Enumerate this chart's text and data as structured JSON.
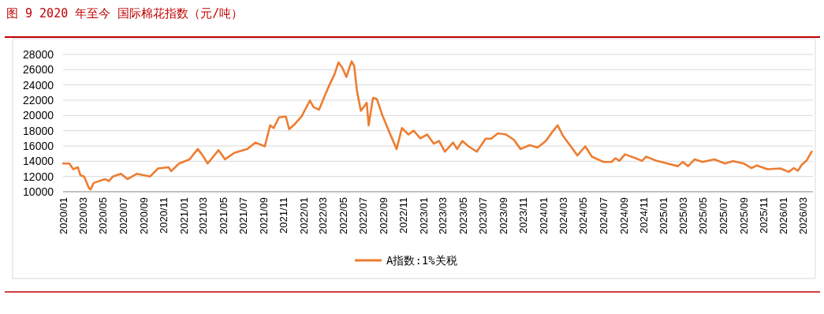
{
  "chart_data": {
    "type": "line",
    "title": "图 9 2020 年至今 国际棉花指数（元/吨）",
    "x": [
      "2020-01-01",
      "2020-01-20",
      "2020-02-01",
      "2020-02-15",
      "2020-02-23",
      "2020-03-05",
      "2020-03-20",
      "2020-03-25",
      "2020-04-03",
      "2020-05-08",
      "2020-05-20",
      "2020-06-01",
      "2020-06-25",
      "2020-07-15",
      "2020-08-12",
      "2020-09-22",
      "2020-10-16",
      "2020-11-17",
      "2020-11-25",
      "2020-12-19",
      "2021-01-20",
      "2021-02-14",
      "2021-03-01",
      "2021-03-16",
      "2021-04-18",
      "2021-05-08",
      "2021-06-05",
      "2021-07-15",
      "2021-08-08",
      "2021-09-06",
      "2021-09-22",
      "2021-10-03",
      "2021-10-19",
      "2021-11-09",
      "2021-11-19",
      "2021-12-07",
      "2021-12-27",
      "2022-01-21",
      "2022-02-01",
      "2022-02-18",
      "2022-03-08",
      "2022-03-20",
      "2022-04-06",
      "2022-04-18",
      "2022-04-30",
      "2022-05-12",
      "2022-05-28",
      "2022-06-05",
      "2022-06-13",
      "2022-06-25",
      "2022-07-13",
      "2022-07-19",
      "2022-08-01",
      "2022-08-13",
      "2022-08-29",
      "2022-09-18",
      "2022-10-12",
      "2022-10-28",
      "2022-11-17",
      "2022-12-03",
      "2022-12-23",
      "2023-01-13",
      "2023-02-02",
      "2023-02-18",
      "2023-03-08",
      "2023-04-02",
      "2023-04-14",
      "2023-04-30",
      "2023-05-19",
      "2023-06-13",
      "2023-07-10",
      "2023-07-27",
      "2023-08-16",
      "2023-09-10",
      "2023-10-04",
      "2023-10-24",
      "2023-11-21",
      "2023-12-15",
      "2024-01-09",
      "2024-01-29",
      "2024-02-14",
      "2024-03-01",
      "2024-03-25",
      "2024-04-14",
      "2024-05-08",
      "2024-05-28",
      "2024-07-03",
      "2024-07-27",
      "2024-08-08",
      "2024-08-20",
      "2024-09-06",
      "2024-10-08",
      "2024-10-28",
      "2024-11-09",
      "2024-12-11",
      "2025-01-13",
      "2025-02-14",
      "2025-03-01",
      "2025-03-17",
      "2025-04-06",
      "2025-04-30",
      "2025-06-05",
      "2025-07-07",
      "2025-08-01",
      "2025-09-02",
      "2025-09-26",
      "2025-10-12",
      "2025-11-14",
      "2025-12-23",
      "2026-01-17",
      "2026-02-02",
      "2026-02-14",
      "2026-02-26",
      "2026-03-12",
      "2026-03-28"
    ],
    "series": [
      {
        "name": "A指数:1%关税",
        "color": "#ed7d31",
        "values": [
          13700,
          13700,
          12950,
          13200,
          12150,
          12000,
          10450,
          10300,
          11150,
          11650,
          11400,
          12000,
          12350,
          11650,
          12350,
          12000,
          13050,
          13200,
          12700,
          13700,
          14250,
          15600,
          14750,
          13700,
          15450,
          14250,
          15100,
          15600,
          16450,
          15950,
          18700,
          18350,
          19750,
          19850,
          18200,
          18900,
          19900,
          21950,
          21100,
          20750,
          22650,
          23850,
          25400,
          26950,
          26250,
          25050,
          27100,
          26450,
          23350,
          20600,
          21650,
          18700,
          22300,
          22150,
          20100,
          18000,
          15600,
          18350,
          17500,
          18000,
          17000,
          17500,
          16300,
          16650,
          15250,
          16450,
          15600,
          16650,
          15950,
          15250,
          16950,
          16950,
          17650,
          17500,
          16800,
          15600,
          16100,
          15800,
          16650,
          17850,
          18700,
          17350,
          15950,
          14750,
          15950,
          14600,
          13900,
          13900,
          14400,
          14050,
          14900,
          14400,
          14050,
          14600,
          14050,
          13700,
          13350,
          13900,
          13350,
          14250,
          13900,
          14250,
          13700,
          14000,
          13700,
          13100,
          13450,
          12950,
          13050,
          12600,
          13100,
          12750,
          13550,
          14050,
          15250
        ]
      }
    ],
    "xlim": [
      "2020-01-01",
      "2026-04-01"
    ],
    "xticks": [
      {
        "value": "2020-01",
        "label": "2020/01"
      },
      {
        "value": "2020-03",
        "label": "2020/03"
      },
      {
        "value": "2020-05",
        "label": "2020/05"
      },
      {
        "value": "2020-07",
        "label": "2020/07"
      },
      {
        "value": "2020-09",
        "label": "2020/09"
      },
      {
        "value": "2020-11",
        "label": "2020/11"
      },
      {
        "value": "2021-01",
        "label": "2021/01"
      },
      {
        "value": "2021-03",
        "label": "2021/03"
      },
      {
        "value": "2021-05",
        "label": "2021/05"
      },
      {
        "value": "2021-07",
        "label": "2021/07"
      },
      {
        "value": "2021-09",
        "label": "2021/09"
      },
      {
        "value": "2021-11",
        "label": "2021/11"
      },
      {
        "value": "2022-01",
        "label": "2022/01"
      },
      {
        "value": "2022-03",
        "label": "2022/03"
      },
      {
        "value": "2022-05",
        "label": "2022/05"
      },
      {
        "value": "2022-07",
        "label": "2022/07"
      },
      {
        "value": "2022-09",
        "label": "2022/09"
      },
      {
        "value": "2022-11",
        "label": "2022/11"
      },
      {
        "value": "2023-01",
        "label": "2023/01"
      },
      {
        "value": "2023-03",
        "label": "2023/03"
      },
      {
        "value": "2023-05",
        "label": "2023/05"
      },
      {
        "value": "2023-07",
        "label": "2023/07"
      },
      {
        "value": "2023-09",
        "label": "2023/09"
      },
      {
        "value": "2023-11",
        "label": "2023/11"
      },
      {
        "value": "2024-01",
        "label": "2024/01"
      },
      {
        "value": "2024-03",
        "label": "2024/03"
      },
      {
        "value": "2024-05",
        "label": "2024/05"
      },
      {
        "value": "2024-07",
        "label": "2024/07"
      },
      {
        "value": "2024-09",
        "label": "2024/09"
      },
      {
        "value": "2024-11",
        "label": "2024/11"
      },
      {
        "value": "2025-01",
        "label": "2025/01"
      },
      {
        "value": "2025-03",
        "label": "2025/03"
      },
      {
        "value": "2025-05",
        "label": "2025/05"
      },
      {
        "value": "2025-07",
        "label": "2025/07"
      },
      {
        "value": "2025-09",
        "label": "2025/09"
      },
      {
        "value": "2025-11",
        "label": "2025/11"
      },
      {
        "value": "2026-01",
        "label": "2026/01"
      },
      {
        "value": "2026-03",
        "label": "2026/03"
      }
    ],
    "ylim": [
      10000,
      28000
    ],
    "yticks": [
      10000,
      12000,
      14000,
      16000,
      18000,
      20000,
      22000,
      24000,
      26000,
      28000
    ],
    "grid": "y",
    "legend": "bottom",
    "marker": "none",
    "line_style": "solid"
  }
}
